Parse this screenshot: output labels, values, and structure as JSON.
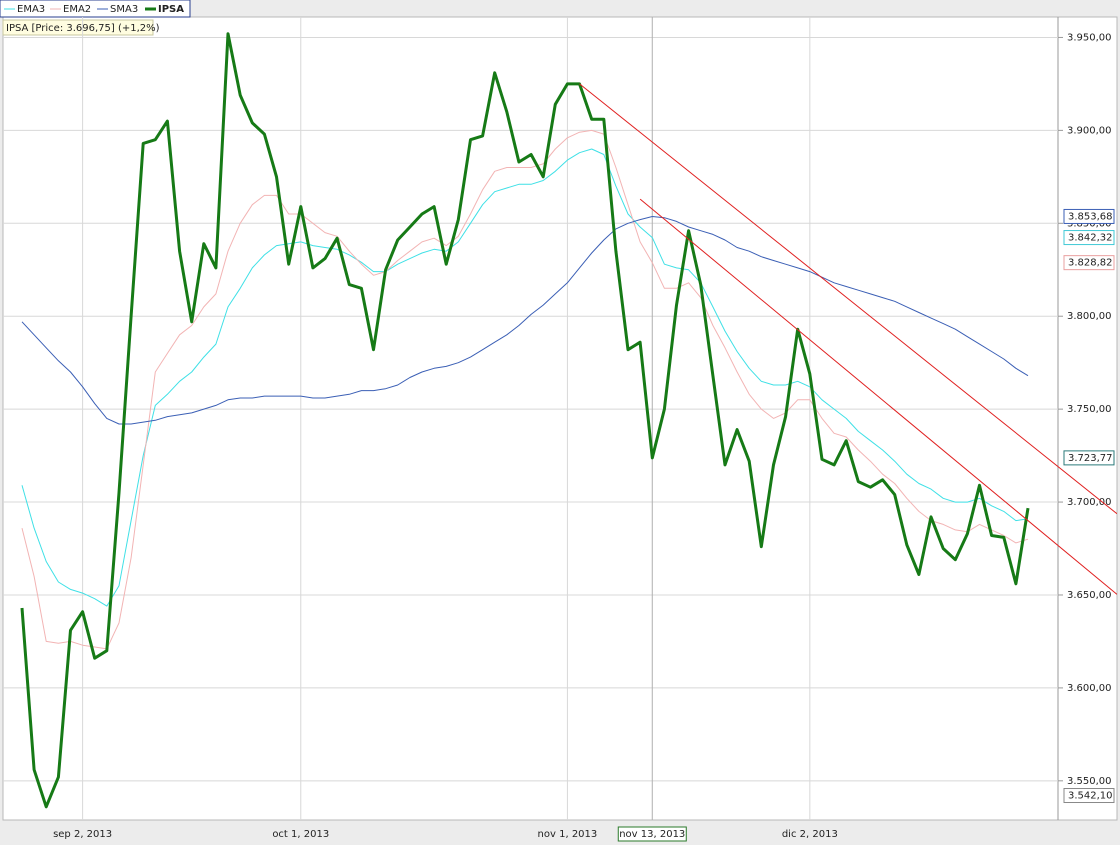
{
  "chart_data": {
    "type": "line",
    "info": "IPSA [Price: 3.696,75] (+1,2%)",
    "categories": [
      null,
      null,
      null,
      null,
      null,
      "sep 2, 2013",
      null,
      null,
      null,
      null,
      null,
      null,
      null,
      null,
      null,
      null,
      null,
      null,
      null,
      null,
      null,
      null,
      null,
      "oct 1, 2013",
      null,
      null,
      null,
      null,
      null,
      null,
      null,
      null,
      null,
      null,
      null,
      null,
      null,
      null,
      null,
      null,
      null,
      null,
      null,
      null,
      null,
      "nov 1, 2013",
      null,
      null,
      null,
      null,
      null,
      null,
      "nov 13, 2013",
      null,
      null,
      null,
      null,
      null,
      null,
      null,
      null,
      null,
      null,
      null,
      null,
      "dic 2, 2013",
      null,
      null,
      null,
      null,
      null,
      null,
      null,
      null,
      null,
      null,
      null,
      null,
      null,
      null,
      null,
      null,
      null,
      null
    ],
    "crosshair": "nov 13, 2013",
    "series": [
      {
        "name": "EMA3",
        "color": "#3fe0e6",
        "width": 1,
        "values": [
          3709,
          3686,
          3668,
          3657,
          3653,
          3651,
          3648,
          3644,
          3655,
          3690,
          3725,
          3752,
          3758,
          3765,
          3770,
          3778,
          3785,
          3805,
          3815,
          3826,
          3833,
          3838,
          3839,
          3840,
          3838,
          3837,
          3836,
          3833,
          3829,
          3824,
          3824,
          3828,
          3831,
          3834,
          3836,
          3835,
          3840,
          3850,
          3860,
          3867,
          3869,
          3871,
          3871,
          3873,
          3878,
          3884,
          3888,
          3890,
          3887,
          3870,
          3855,
          3848,
          3842.32,
          3828,
          3826,
          3825,
          3818,
          3805,
          3792,
          3781,
          3772,
          3765,
          3763,
          3763,
          3765,
          3762,
          3755,
          3750,
          3745,
          3738,
          3733,
          3728,
          3722,
          3715,
          3710,
          3707,
          3702,
          3700,
          3700,
          3702,
          3698,
          3695,
          3690,
          3691
        ]
      },
      {
        "name": "EMA2",
        "color": "#f2b4b4",
        "width": 1,
        "values": [
          3686,
          3660,
          3625,
          3624,
          3625,
          3623,
          3622,
          3621,
          3635,
          3670,
          3720,
          3770,
          3780,
          3790,
          3795,
          3805,
          3812,
          3835,
          3850,
          3860,
          3865,
          3865,
          3855,
          3855,
          3850,
          3845,
          3843,
          3835,
          3828,
          3822,
          3824,
          3830,
          3835,
          3840,
          3842,
          3838,
          3843,
          3855,
          3868,
          3878,
          3880,
          3880,
          3880,
          3882,
          3890,
          3896,
          3899,
          3900,
          3898,
          3880,
          3860,
          3840,
          3828.82,
          3815,
          3815,
          3818,
          3810,
          3795,
          3783,
          3770,
          3758,
          3750,
          3745,
          3748,
          3755,
          3755,
          3745,
          3737,
          3735,
          3728,
          3722,
          3715,
          3710,
          3702,
          3695,
          3690,
          3688,
          3685,
          3684,
          3688,
          3685,
          3682,
          3678,
          3680
        ]
      },
      {
        "name": "SMA3",
        "color": "#3b5fb5",
        "width": 1,
        "values": [
          3797,
          3790,
          3783,
          3776,
          3770,
          3762,
          3753,
          3745,
          3742,
          3742,
          3743,
          3744,
          3746,
          3747,
          3748,
          3750,
          3752,
          3755,
          3756,
          3756,
          3757,
          3757,
          3757,
          3757,
          3756,
          3756,
          3757,
          3758,
          3760,
          3760,
          3761,
          3763,
          3767,
          3770,
          3772,
          3773,
          3775,
          3778,
          3782,
          3786,
          3790,
          3795,
          3801,
          3806,
          3812,
          3818,
          3826,
          3834,
          3841,
          3847,
          3850,
          3852,
          3853.68,
          3853,
          3851,
          3848,
          3846,
          3844,
          3841,
          3837,
          3835,
          3832,
          3830,
          3828,
          3826,
          3824,
          3821,
          3818,
          3816,
          3814,
          3812,
          3810,
          3808,
          3805,
          3802,
          3799,
          3796,
          3793,
          3789,
          3785,
          3781,
          3777,
          3772,
          3768
        ]
      },
      {
        "name": "IPSA",
        "color": "#167a16",
        "width": 3,
        "values": [
          3643,
          3556,
          3536,
          3552,
          3631,
          3641,
          3616,
          3620,
          3705,
          3800,
          3893,
          3895,
          3905,
          3835,
          3797,
          3839,
          3826,
          3952,
          3919,
          3904,
          3898,
          3875,
          3828,
          3859,
          3826,
          3831,
          3842,
          3817,
          3815,
          3782,
          3825,
          3841,
          3848,
          3855,
          3859,
          3828,
          3852,
          3895,
          3897,
          3931,
          3910,
          3883,
          3887,
          3875,
          3914,
          3925,
          3925,
          3906,
          3906,
          3835,
          3782,
          3786,
          3723.77,
          3750,
          3806,
          3846,
          3817,
          3768,
          3720,
          3739,
          3722,
          3676,
          3720,
          3746,
          3793,
          3769,
          3723,
          3720,
          3733,
          3711,
          3708,
          3712,
          3704,
          3677,
          3661,
          3692,
          3675,
          3669,
          3683,
          3709,
          3682,
          3681,
          3656,
          3696.75
        ]
      }
    ],
    "trendlines": [
      {
        "color": "#e02020",
        "start": {
          "x": 46,
          "y": 3925
        },
        "end": {
          "x": 83,
          "y": 3732
        }
      },
      {
        "color": "#e02020",
        "start": {
          "x": 51,
          "y": 3863
        },
        "end": {
          "x": 83,
          "y": 3690
        }
      }
    ],
    "readouts": [
      {
        "value": 3853.68,
        "label": "3.853,68",
        "color": "#3b5fb5"
      },
      {
        "value": 3842.32,
        "label": "3.842,32",
        "color": "#3fc8d6"
      },
      {
        "value": 3828.82,
        "label": "3.828,82",
        "color": "#e8a0a0"
      },
      {
        "value": 3723.77,
        "label": "3.723,77",
        "color": "#2a7a7a"
      },
      {
        "value": 3542.1,
        "label": "3.542,10",
        "color": "#888888"
      }
    ],
    "ylim": [
      3530,
      3961
    ],
    "yticks": [
      {
        "value": 3550,
        "label": "3.550,00"
      },
      {
        "value": 3600,
        "label": "3.600,00"
      },
      {
        "value": 3650,
        "label": "3.650,00"
      },
      {
        "value": 3700,
        "label": "3.700,00"
      },
      {
        "value": 3750,
        "label": "3.750,00"
      },
      {
        "value": 3800,
        "label": "3.800,00"
      },
      {
        "value": 3850,
        "label": "3.850,00"
      },
      {
        "value": 3900,
        "label": "3.900,00"
      },
      {
        "value": 3950,
        "label": "3.950,00"
      }
    ],
    "grid": true
  }
}
